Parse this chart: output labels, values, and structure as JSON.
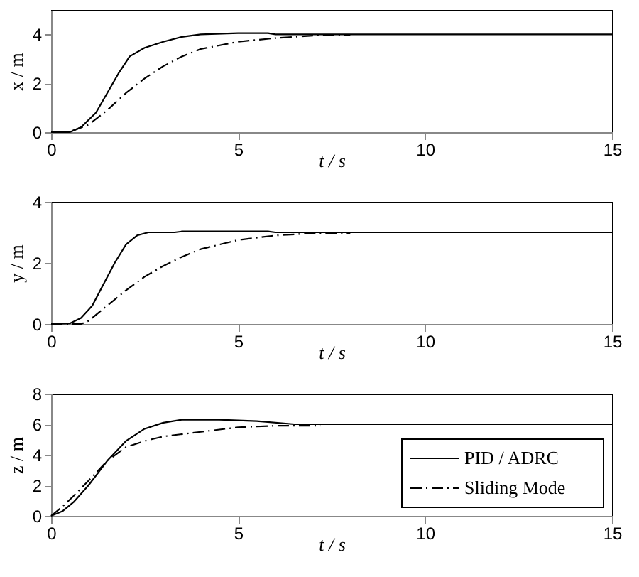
{
  "chart_data": [
    {
      "type": "line",
      "xlabel": "t / s",
      "ylabel": "x / m",
      "xlim": [
        0,
        15
      ],
      "xticks": [
        0,
        5,
        10,
        15
      ],
      "ylim": [
        0,
        5
      ],
      "yticks": [
        0,
        2,
        4
      ],
      "grid": false,
      "legend": false,
      "series": [
        {
          "color": "#000000",
          "line_style": "solid",
          "x": [
            0,
            0.5,
            0.8,
            1.2,
            1.5,
            1.8,
            2.1,
            2.5,
            3,
            3.5,
            4,
            5,
            5.8,
            6,
            15
          ],
          "values": [
            0,
            0,
            0.2,
            0.8,
            1.6,
            2.4,
            3.1,
            3.45,
            3.7,
            3.9,
            4.0,
            4.05,
            4.05,
            4.0,
            4.0
          ]
        },
        {
          "color": "#000000",
          "line_style": "dashdot",
          "x": [
            0,
            0.5,
            1,
            1.5,
            2,
            2.5,
            3,
            3.5,
            4,
            5,
            6,
            7,
            8
          ],
          "values": [
            0,
            0.02,
            0.3,
            0.9,
            1.6,
            2.2,
            2.7,
            3.1,
            3.4,
            3.7,
            3.85,
            3.95,
            3.98
          ]
        }
      ]
    },
    {
      "type": "line",
      "xlabel": "t / s",
      "ylabel": "y / m",
      "xlim": [
        0,
        15
      ],
      "xticks": [
        0,
        5,
        10,
        15
      ],
      "ylim": [
        0,
        4
      ],
      "yticks": [
        0,
        2,
        4
      ],
      "grid": false,
      "legend": false,
      "series": [
        {
          "color": "#000000",
          "line_style": "solid",
          "x": [
            0,
            0.5,
            0.8,
            1.1,
            1.4,
            1.7,
            2.0,
            2.3,
            2.6,
            3.3,
            3.5,
            5.8,
            6,
            15
          ],
          "values": [
            0,
            0.02,
            0.2,
            0.6,
            1.3,
            2.0,
            2.6,
            2.9,
            3.0,
            3.0,
            3.03,
            3.03,
            3.0,
            3.0
          ]
        },
        {
          "color": "#000000",
          "line_style": "dashdot",
          "x": [
            0,
            0.8,
            1,
            1.5,
            2,
            2.5,
            3,
            3.5,
            4,
            5,
            6,
            7,
            8
          ],
          "values": [
            0,
            0,
            0.1,
            0.6,
            1.1,
            1.55,
            1.9,
            2.2,
            2.45,
            2.75,
            2.9,
            2.97,
            2.98
          ]
        }
      ]
    },
    {
      "type": "line",
      "xlabel": "t / s",
      "ylabel": "z / m",
      "xlim": [
        0,
        15
      ],
      "xticks": [
        0,
        5,
        10,
        15
      ],
      "ylim": [
        0,
        8
      ],
      "yticks": [
        0,
        2,
        4,
        6,
        8
      ],
      "grid": false,
      "legend": "bottom right",
      "series": [
        {
          "name": "PID / ADRC",
          "color": "#000000",
          "line_style": "solid",
          "x": [
            0,
            0.3,
            0.6,
            1,
            1.5,
            2,
            2.5,
            3,
            3.5,
            4.5,
            5.5,
            6.5,
            15
          ],
          "values": [
            0,
            0.3,
            0.9,
            2.0,
            3.6,
            4.9,
            5.7,
            6.1,
            6.3,
            6.3,
            6.2,
            6.0,
            6.0
          ]
        },
        {
          "name": "Sliding Mode",
          "color": "#000000",
          "line_style": "dashdot",
          "x": [
            0,
            0.3,
            0.6,
            1,
            1.5,
            2,
            2.5,
            3,
            4,
            5,
            6,
            7.2
          ],
          "values": [
            0,
            0.6,
            1.3,
            2.3,
            3.6,
            4.5,
            4.9,
            5.2,
            5.5,
            5.8,
            5.9,
            5.9
          ]
        }
      ]
    }
  ]
}
